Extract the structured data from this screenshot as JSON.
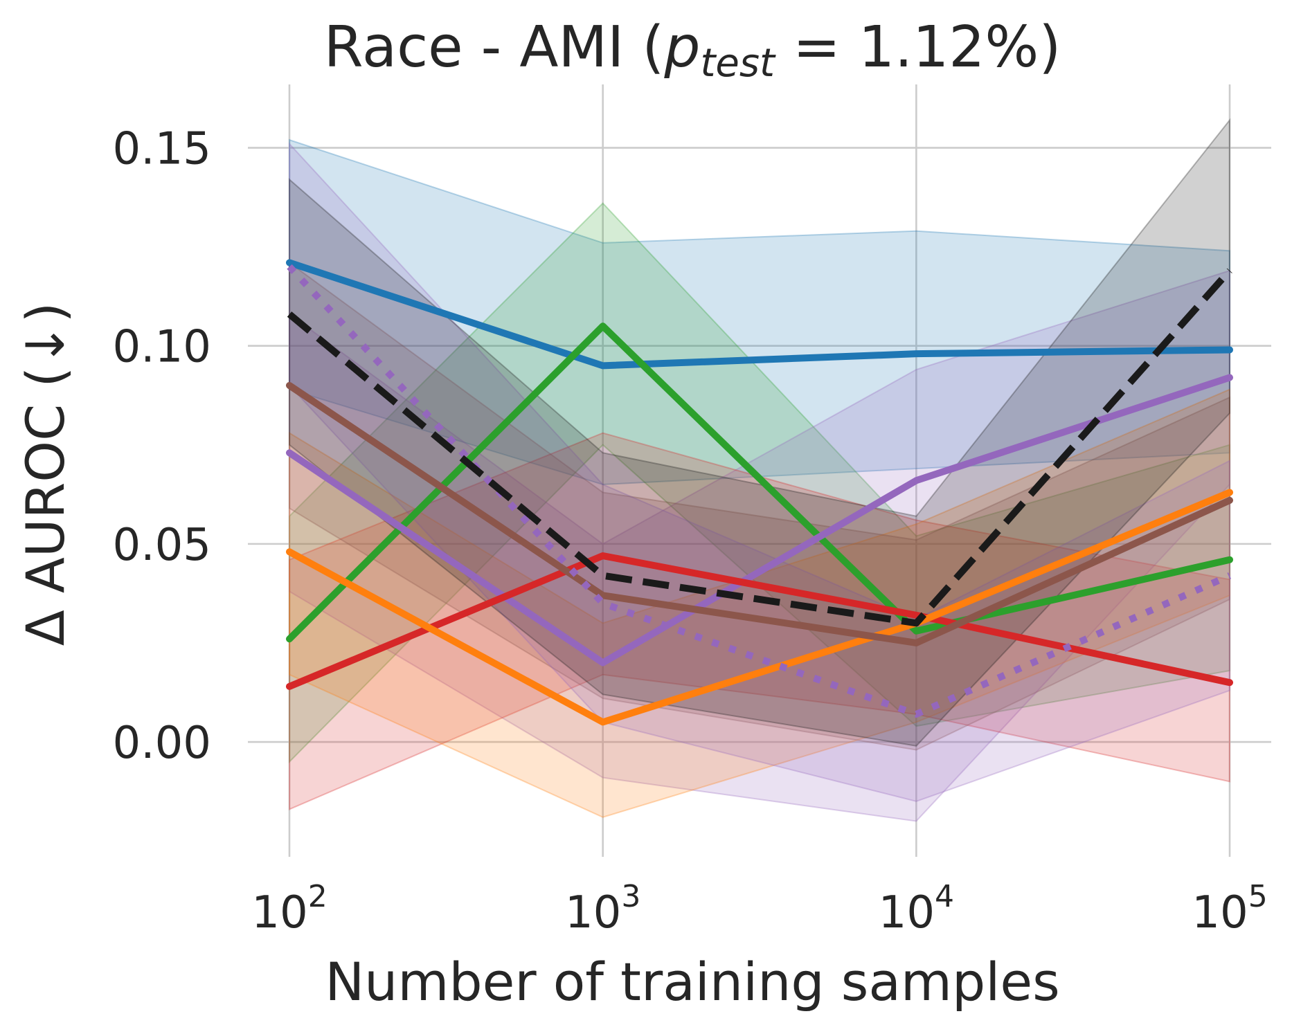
{
  "chart_data": {
    "type": "line",
    "title": {
      "prefix": "Race - AMI (",
      "math_var": "p",
      "math_sub": "test",
      "math_rest": " = 1.12%",
      "suffix": ")"
    },
    "xlabel": "Number of training samples",
    "ylabel": "Δ AUROC (↓)",
    "x_scale": "log",
    "x": [
      100,
      1000,
      10000,
      100000
    ],
    "x_ticks": [
      {
        "value": 100,
        "base": "10",
        "exp": "2"
      },
      {
        "value": 1000,
        "base": "10",
        "exp": "3"
      },
      {
        "value": 10000,
        "base": "10",
        "exp": "4"
      },
      {
        "value": 100000,
        "base": "10",
        "exp": "5"
      }
    ],
    "ylim": [
      -0.029,
      0.166
    ],
    "y_ticks": [
      {
        "value": 0.0,
        "label": "0.00"
      },
      {
        "value": 0.05,
        "label": "0.05"
      },
      {
        "value": 0.1,
        "label": "0.10"
      },
      {
        "value": 0.15,
        "label": "0.15"
      }
    ],
    "grid": true,
    "series": [
      {
        "name": "blue",
        "color": "#1f77b4",
        "style": "solid",
        "values": [
          0.121,
          0.095,
          0.098,
          0.099
        ],
        "lower": [
          0.089,
          0.065,
          0.069,
          0.073
        ],
        "upper": [
          0.152,
          0.126,
          0.129,
          0.124
        ]
      },
      {
        "name": "green",
        "color": "#2ca02c",
        "style": "solid",
        "values": [
          0.026,
          0.105,
          0.028,
          0.046
        ],
        "lower": [
          -0.005,
          0.075,
          0.004,
          0.018
        ],
        "upper": [
          0.057,
          0.136,
          0.052,
          0.075
        ]
      },
      {
        "name": "purple",
        "color": "#9467bd",
        "style": "solid",
        "values": [
          0.073,
          0.02,
          0.066,
          0.092
        ],
        "lower": [
          0.038,
          -0.009,
          -0.02,
          0.065
        ],
        "upper": [
          0.108,
          0.05,
          0.094,
          0.119
        ]
      },
      {
        "name": "red",
        "color": "#d62728",
        "style": "solid",
        "values": [
          0.014,
          0.047,
          0.032,
          0.015
        ],
        "lower": [
          -0.017,
          0.017,
          0.007,
          -0.01
        ],
        "upper": [
          0.046,
          0.078,
          0.056,
          0.041
        ]
      },
      {
        "name": "orange",
        "color": "#ff7f0e",
        "style": "solid",
        "values": [
          0.048,
          0.005,
          0.03,
          0.063
        ],
        "lower": [
          0.017,
          -0.019,
          0.005,
          0.037
        ],
        "upper": [
          0.078,
          0.03,
          0.055,
          0.089
        ]
      },
      {
        "name": "brown",
        "color": "#8c564b",
        "style": "solid",
        "values": [
          0.09,
          0.037,
          0.025,
          0.061
        ],
        "lower": [
          0.059,
          0.011,
          -0.002,
          0.036
        ],
        "upper": [
          0.121,
          0.063,
          0.051,
          0.087
        ]
      },
      {
        "name": "purple-dotted",
        "color": "#9467bd",
        "style": "dotted",
        "values": [
          0.12,
          0.035,
          0.007,
          0.042
        ],
        "lower": [
          0.09,
          0.005,
          -0.015,
          0.013
        ],
        "upper": [
          0.151,
          0.065,
          0.031,
          0.071
        ]
      },
      {
        "name": "black-dashed",
        "color": "#1a1a1a",
        "style": "dashed",
        "values": [
          0.108,
          0.042,
          0.03,
          0.119
        ],
        "lower": [
          0.075,
          0.012,
          -0.001,
          0.083
        ],
        "upper": [
          0.142,
          0.073,
          0.057,
          0.157
        ]
      }
    ]
  }
}
